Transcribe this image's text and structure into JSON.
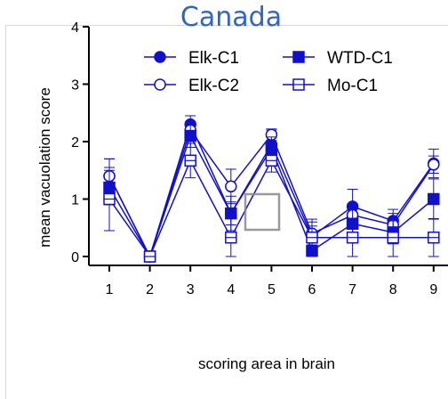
{
  "chart_data": {
    "type": "line",
    "title": "Canada",
    "xlabel": "scoring area in brain",
    "ylabel": "mean vacuolation score",
    "categories": [
      "1",
      "2",
      "3",
      "4",
      "5",
      "6",
      "7",
      "8",
      "9"
    ],
    "x_ticks": [
      "1",
      "2",
      "3",
      "4",
      "5",
      "6",
      "7",
      "8",
      "9"
    ],
    "y_ticks": [
      "0",
      "1",
      "2",
      "3",
      "4"
    ],
    "ylim": [
      0,
      4
    ],
    "legend_position": "top",
    "series": [
      {
        "name": "Elk-C1",
        "marker": "filled-circle",
        "values": [
          1.4,
          0,
          2.3,
          0.75,
          1.95,
          0.35,
          0.87,
          0.62,
          1.62
        ],
        "errors": [
          0.3,
          0,
          0.15,
          0.2,
          0.25,
          0.3,
          0.3,
          0.2,
          0.25
        ]
      },
      {
        "name": "Elk-C2",
        "marker": "open-circle",
        "values": [
          1.4,
          0,
          2.2,
          1.22,
          2.12,
          0.4,
          0.72,
          0.55,
          1.6
        ],
        "errors": [
          0.3,
          0,
          0.15,
          0.3,
          0.1,
          0.2,
          0.2,
          0.2,
          0.15
        ]
      },
      {
        "name": "WTD-C1",
        "marker": "filled-square",
        "values": [
          1.2,
          0,
          2.1,
          0.75,
          1.88,
          0.1,
          0.57,
          0.42,
          1.0
        ],
        "errors": [
          0.3,
          0,
          0.2,
          0.3,
          0.2,
          0.1,
          0.3,
          0.2,
          0.35
        ]
      },
      {
        "name": "Mo-C1",
        "marker": "open-square",
        "values": [
          1.0,
          0,
          1.67,
          0.33,
          1.67,
          0.33,
          0.33,
          0.33,
          0.33
        ],
        "errors": [
          0.55,
          0,
          0.3,
          0.33,
          0.2,
          0.2,
          0.33,
          0.33,
          0.33
        ]
      }
    ],
    "colors": {
      "series": "#1111cc"
    }
  }
}
